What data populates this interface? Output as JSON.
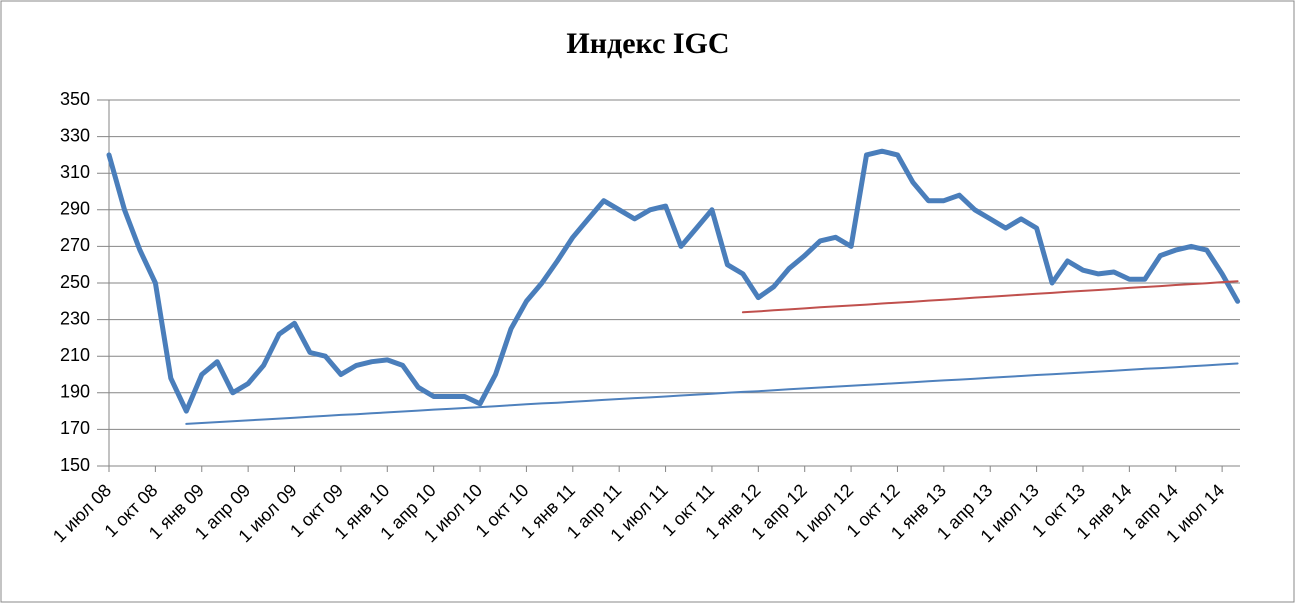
{
  "chart_data": {
    "type": "line",
    "title": "Индекс IGC",
    "categories": [
      "1 июл 08",
      null,
      null,
      "1 окт 08",
      null,
      null,
      "1 янв 09",
      null,
      null,
      "1 апр 09",
      null,
      null,
      "1 июл 09",
      null,
      null,
      "1 окт 09",
      null,
      null,
      "1 янв 10",
      null,
      null,
      "1 апр 10",
      null,
      null,
      "1 июл 10",
      null,
      null,
      "1 окт 10",
      null,
      null,
      "1 янв 11",
      null,
      null,
      "1 апр 11",
      null,
      null,
      "1 июл 11",
      null,
      null,
      "1 окт 11",
      null,
      null,
      "1 янв 12",
      null,
      null,
      "1 апр 12",
      null,
      null,
      "1 июл 12",
      null,
      null,
      "1 окт 12",
      null,
      null,
      "1 янв 13",
      null,
      null,
      "1 апр 13",
      null,
      null,
      "1 июл 13",
      null,
      null,
      "1 окт 13",
      null,
      null,
      "1 янв 14",
      null,
      null,
      "1 апр 14",
      null,
      null,
      "1 июл 14",
      null
    ],
    "series": [
      {
        "color": "#4a7ebb",
        "width": 5,
        "values": [
          320,
          290,
          268,
          250,
          198,
          180,
          200,
          207,
          190,
          195,
          205,
          222,
          228,
          212,
          210,
          200,
          205,
          207,
          208,
          205,
          193,
          188,
          188,
          188,
          184,
          200,
          225,
          240,
          250,
          262,
          275,
          285,
          295,
          290,
          285,
          290,
          292,
          270,
          280,
          290,
          260,
          255,
          242,
          248,
          258,
          265,
          273,
          275,
          270,
          320,
          322,
          320,
          305,
          295,
          295,
          298,
          290,
          285,
          280,
          285,
          280,
          250,
          262,
          257,
          255,
          256,
          252,
          252,
          265,
          268,
          270,
          268,
          255,
          240
        ]
      },
      {
        "color": "#4f81bd",
        "width": 2,
        "values": [
          null,
          null,
          null,
          null,
          null,
          173.0,
          173.5,
          174.0,
          174.5,
          174.9,
          175.4,
          175.9,
          176.4,
          176.9,
          177.4,
          177.9,
          178.3,
          178.8,
          179.3,
          179.8,
          180.3,
          180.8,
          181.2,
          181.7,
          182.2,
          182.7,
          183.2,
          183.7,
          184.2,
          184.6,
          185.1,
          185.6,
          186.1,
          186.6,
          187.1,
          187.5,
          188.0,
          188.5,
          189.0,
          189.5,
          190.0,
          190.5,
          190.9,
          191.4,
          191.9,
          192.4,
          192.9,
          193.4,
          193.8,
          194.3,
          194.8,
          195.3,
          195.8,
          196.3,
          196.8,
          197.2,
          197.7,
          198.2,
          198.7,
          199.2,
          199.7,
          200.1,
          200.6,
          201.1,
          201.6,
          202.1,
          202.6,
          203.1,
          203.5,
          204.0,
          204.5,
          205.0,
          205.5,
          206.0
        ]
      },
      {
        "color": "#c0504d",
        "width": 2,
        "values": [
          null,
          null,
          null,
          null,
          null,
          null,
          null,
          null,
          null,
          null,
          null,
          null,
          null,
          null,
          null,
          null,
          null,
          null,
          null,
          null,
          null,
          null,
          null,
          null,
          null,
          null,
          null,
          null,
          null,
          null,
          null,
          null,
          null,
          null,
          null,
          null,
          null,
          null,
          null,
          null,
          null,
          234.0,
          234.5,
          235.1,
          235.6,
          236.1,
          236.7,
          237.2,
          237.7,
          238.2,
          238.8,
          239.3,
          239.8,
          240.4,
          240.9,
          241.4,
          242.0,
          242.5,
          243.0,
          243.6,
          244.1,
          244.6,
          245.2,
          245.7,
          246.2,
          246.7,
          247.3,
          247.8,
          248.3,
          248.9,
          249.4,
          249.9,
          250.5,
          251.0
        ]
      }
    ],
    "ylim": [
      150,
      350
    ],
    "yticks": [
      150,
      170,
      190,
      210,
      230,
      250,
      270,
      290,
      310,
      330,
      350
    ],
    "grid": true
  }
}
